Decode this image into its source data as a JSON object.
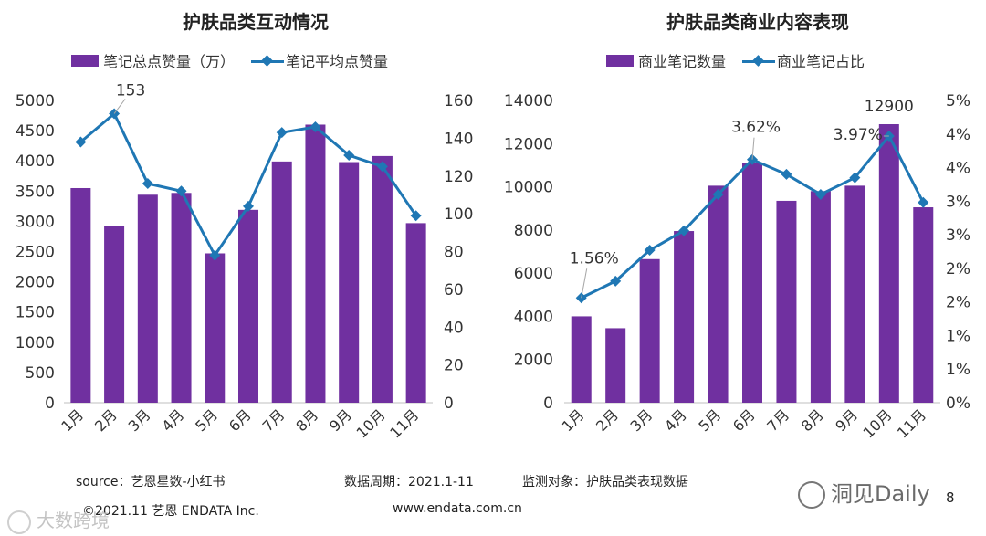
{
  "chart_data": [
    {
      "type": "bar+line",
      "title": "护肤品类互动情况",
      "categories": [
        "1月",
        "2月",
        "3月",
        "4月",
        "5月",
        "6月",
        "7月",
        "8月",
        "9月",
        "10月",
        "11月"
      ],
      "series": [
        {
          "name": "笔记总点赞量（万）",
          "type": "bar",
          "axis": "left",
          "values": [
            3550,
            2920,
            3440,
            3470,
            2470,
            3190,
            3990,
            4600,
            3980,
            4080,
            2970
          ]
        },
        {
          "name": "笔记平均点赞量",
          "type": "line",
          "axis": "right",
          "values": [
            138,
            153,
            116,
            112,
            78,
            104,
            143,
            146,
            131,
            125,
            99
          ]
        }
      ],
      "annotations": [
        {
          "index": 1,
          "text": "153"
        }
      ],
      "y_left": {
        "min": 0,
        "max": 5000,
        "ticks": [
          "0",
          "500",
          "1000",
          "1500",
          "2000",
          "2500",
          "3000",
          "3500",
          "4000",
          "4500",
          "5000"
        ]
      },
      "y_right": {
        "min": 0,
        "max": 160,
        "ticks": [
          "0",
          "20",
          "40",
          "60",
          "80",
          "100",
          "120",
          "140",
          "160"
        ]
      }
    },
    {
      "type": "bar+line",
      "title": "护肤品类商业内容表现",
      "categories": [
        "1月",
        "2月",
        "3月",
        "4月",
        "5月",
        "6月",
        "7月",
        "8月",
        "9月",
        "10月",
        "11月"
      ],
      "series": [
        {
          "name": "商业笔记数量",
          "type": "bar",
          "axis": "left",
          "values": [
            4000,
            3450,
            6650,
            7950,
            10050,
            11100,
            9350,
            9800,
            10050,
            12900,
            9050
          ]
        },
        {
          "name": "商业笔记占比",
          "type": "line",
          "axis": "right",
          "values": [
            1.56,
            1.81,
            2.27,
            2.56,
            3.1,
            3.62,
            3.4,
            3.1,
            3.35,
            3.97,
            2.98
          ]
        }
      ],
      "annotations": [
        {
          "index": 0,
          "text": "1.56%"
        },
        {
          "index": 5,
          "text": "3.62%"
        },
        {
          "index": 9,
          "text": "3.97%"
        },
        {
          "index": 9,
          "text": "12900",
          "series": 0
        }
      ],
      "y_left": {
        "min": 0,
        "max": 14000,
        "ticks": [
          "0",
          "2000",
          "4000",
          "6000",
          "8000",
          "10000",
          "12000",
          "14000"
        ]
      },
      "y_right": {
        "min": 0,
        "max": 4.5,
        "ticks": [
          "0%",
          "1%",
          "1%",
          "2%",
          "2%",
          "3%",
          "3%",
          "4%",
          "4%",
          "5%"
        ]
      }
    }
  ],
  "colors": {
    "bar": "#7030a0",
    "line": "#1f77b4"
  },
  "footer": {
    "source": "source：艺恩星数-小红书",
    "period": "数据周期：2021.1-11",
    "target": "监测对象：护肤品类表现数据",
    "copyright": "©2021.11 艺恩 ENDATA Inc.",
    "url": "www.endata.com.cn",
    "page": "8"
  },
  "watermarks": {
    "right": "洞见Daily",
    "left": "大数跨境"
  }
}
